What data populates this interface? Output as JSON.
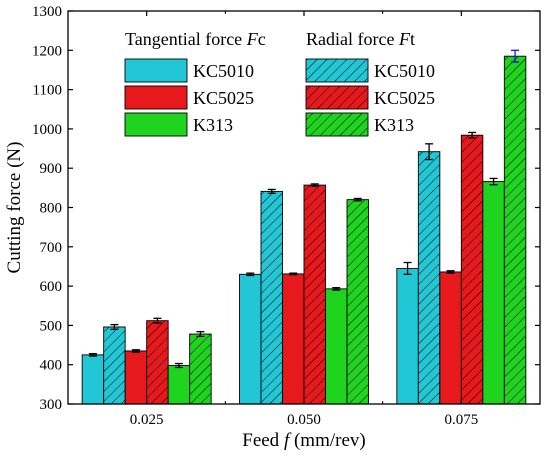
{
  "chart_data": {
    "type": "bar",
    "xlabel_prefix": "Feed ",
    "xlabel_var": "f",
    "xlabel_suffix": " (mm/rev)",
    "ylabel": "Cutting force (N)",
    "ylim": [
      300,
      1300
    ],
    "yticks": [
      300,
      400,
      500,
      600,
      700,
      800,
      900,
      1000,
      1100,
      1200,
      1300
    ],
    "categories": [
      "0.025",
      "0.050",
      "0.075"
    ],
    "legend_groups": [
      {
        "title_prefix": "Tangential force ",
        "title_var": "F",
        "title_suffix": "c"
      },
      {
        "title_prefix": "Radial force ",
        "title_var": "F",
        "title_suffix": "t"
      }
    ],
    "series": [
      {
        "name": "KC5010",
        "group": 0,
        "color": "#22c7d6",
        "hatch": false,
        "values": [
          425,
          630,
          645
        ],
        "errors": [
          3,
          3,
          15
        ]
      },
      {
        "name": "KC5010",
        "group": 1,
        "color": "#22c7d6",
        "hatch": true,
        "values": [
          496,
          841,
          942
        ],
        "errors": [
          6,
          5,
          20
        ]
      },
      {
        "name": "KC5025",
        "group": 0,
        "color": "#e8191c",
        "hatch": false,
        "values": [
          435,
          631,
          636
        ],
        "errors": [
          3,
          2,
          3
        ]
      },
      {
        "name": "KC5025",
        "group": 1,
        "color": "#e8191c",
        "hatch": true,
        "values": [
          512,
          857,
          984
        ],
        "errors": [
          6,
          3,
          7
        ]
      },
      {
        "name": "K313",
        "group": 0,
        "color": "#1ed41e",
        "hatch": false,
        "values": [
          398,
          593,
          866
        ],
        "errors": [
          5,
          3,
          8
        ]
      },
      {
        "name": "K313",
        "group": 1,
        "color": "#1ed41e",
        "hatch": true,
        "values": [
          478,
          820,
          1185
        ],
        "errors": [
          6,
          3,
          15
        ]
      }
    ],
    "legend_placement": "top-left inside",
    "grid": false
  }
}
